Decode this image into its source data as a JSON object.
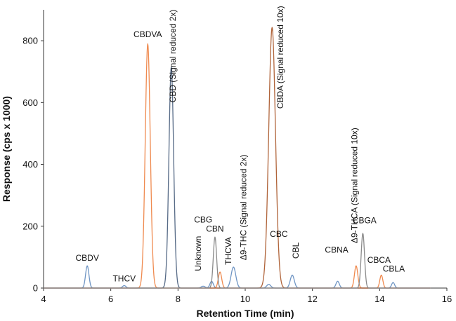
{
  "chart_data": {
    "type": "line",
    "title": "",
    "xlabel": "Retention Time (min)",
    "ylabel": "Response (cps x 1000)",
    "xlim": [
      4,
      16
    ],
    "ylim": [
      0,
      900
    ],
    "xticks": [
      4,
      6,
      8,
      10,
      12,
      14,
      16
    ],
    "yticks": [
      0,
      200,
      400,
      600,
      800
    ],
    "grid": false,
    "legend": "none",
    "colors": {
      "blue": "#6f95c4",
      "orange": "#ef8a4f",
      "slate": "#566a86",
      "brown": "#b0643a",
      "gray": "#8a8a8a"
    },
    "series": [
      {
        "color": "blue",
        "baseline_x": [
          4,
          15.5
        ],
        "peaks": [
          {
            "x": 5.3,
            "y": 72,
            "w": 0.05
          },
          {
            "x": 6.4,
            "y": 8,
            "w": 0.05
          },
          {
            "x": 8.75,
            "y": 6,
            "w": 0.06
          },
          {
            "x": 9.0,
            "y": 22,
            "w": 0.05
          },
          {
            "x": 9.65,
            "y": 68,
            "w": 0.07
          },
          {
            "x": 10.7,
            "y": 12,
            "w": 0.06
          },
          {
            "x": 11.4,
            "y": 42,
            "w": 0.06
          },
          {
            "x": 12.75,
            "y": 22,
            "w": 0.05
          },
          {
            "x": 14.4,
            "y": 18,
            "w": 0.045
          }
        ]
      },
      {
        "color": "orange",
        "baseline_x": [
          4,
          15.5
        ],
        "peaks": [
          {
            "x": 7.1,
            "y": 790,
            "w": 0.075
          },
          {
            "x": 9.25,
            "y": 52,
            "w": 0.05
          },
          {
            "x": 13.3,
            "y": 72,
            "w": 0.05
          },
          {
            "x": 14.05,
            "y": 42,
            "w": 0.045
          }
        ]
      },
      {
        "color": "slate",
        "baseline_x": [
          4,
          15.5
        ],
        "peaks": [
          {
            "x": 7.8,
            "y": 715,
            "w": 0.07
          }
        ]
      },
      {
        "color": "brown",
        "baseline_x": [
          4,
          15.5
        ],
        "peaks": [
          {
            "x": 10.8,
            "y": 843,
            "w": 0.1
          }
        ]
      },
      {
        "color": "gray",
        "baseline_x": [
          4,
          15.5
        ],
        "peaks": [
          {
            "x": 9.1,
            "y": 165,
            "w": 0.05
          },
          {
            "x": 13.5,
            "y": 177,
            "w": 0.05
          }
        ]
      }
    ],
    "annotations": [
      {
        "text": "CBDV",
        "x": 5.3,
        "y": 88,
        "rotate": false
      },
      {
        "text": "THCV",
        "x": 6.4,
        "y": 22,
        "rotate": false
      },
      {
        "text": "CBDVA",
        "x": 7.1,
        "y": 812,
        "rotate": false
      },
      {
        "text": "CBD (Signal reduced 2x)",
        "x": 7.85,
        "y": 600,
        "rotate": true
      },
      {
        "text": "Unknown",
        "x": 8.6,
        "y": 55,
        "rotate": true
      },
      {
        "text": "CBG",
        "x": 8.75,
        "y": 212,
        "rotate": false
      },
      {
        "text": "CBN",
        "x": 9.1,
        "y": 182,
        "rotate": false
      },
      {
        "text": "THCVA",
        "x": 9.5,
        "y": 75,
        "rotate": true
      },
      {
        "text": "Δ9-THC (Signal reduced 2x)",
        "x": 9.95,
        "y": 90,
        "rotate": true
      },
      {
        "text": "CBC",
        "x": 11.0,
        "y": 165,
        "rotate": false
      },
      {
        "text": "CBDA (Signal reduced 10x)",
        "x": 11.05,
        "y": 580,
        "rotate": true
      },
      {
        "text": "CBL",
        "x": 11.5,
        "y": 95,
        "rotate": true
      },
      {
        "text": "CBNA",
        "x": 12.72,
        "y": 115,
        "rotate": false
      },
      {
        "text": "Δ9-THCA (Signal reduced 10x)",
        "x": 13.25,
        "y": 145,
        "rotate": true
      },
      {
        "text": "CBGA",
        "x": 13.55,
        "y": 210,
        "rotate": false
      },
      {
        "text": "CBCA",
        "x": 13.98,
        "y": 82,
        "rotate": false
      },
      {
        "text": "CBLA",
        "x": 14.42,
        "y": 53,
        "rotate": false
      }
    ]
  }
}
